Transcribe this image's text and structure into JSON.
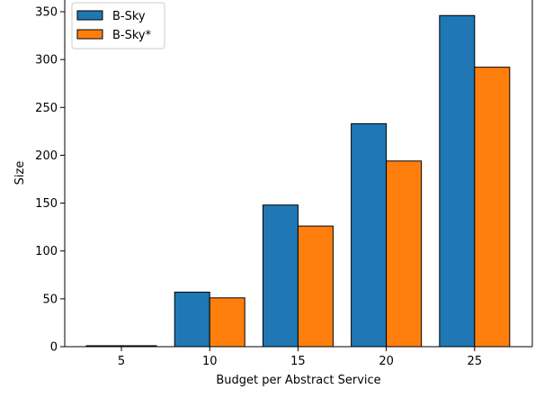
{
  "chart_data": {
    "type": "bar",
    "title": "",
    "xlabel": "Budget per Abstract Service",
    "ylabel": "Size",
    "categories": [
      "5",
      "10",
      "15",
      "20",
      "25"
    ],
    "series": [
      {
        "name": "B-Sky",
        "color": "#1f77b4",
        "values": [
          1,
          57,
          148,
          233,
          346
        ]
      },
      {
        "name": "B-Sky*",
        "color": "#ff7f0e",
        "values": [
          1,
          51,
          126,
          194,
          292
        ]
      }
    ],
    "ylim": [
      0,
      350
    ],
    "yticks": [
      "0",
      "50",
      "100",
      "150",
      "200",
      "250",
      "300",
      "350"
    ],
    "legend": "top-left",
    "grid": false
  }
}
